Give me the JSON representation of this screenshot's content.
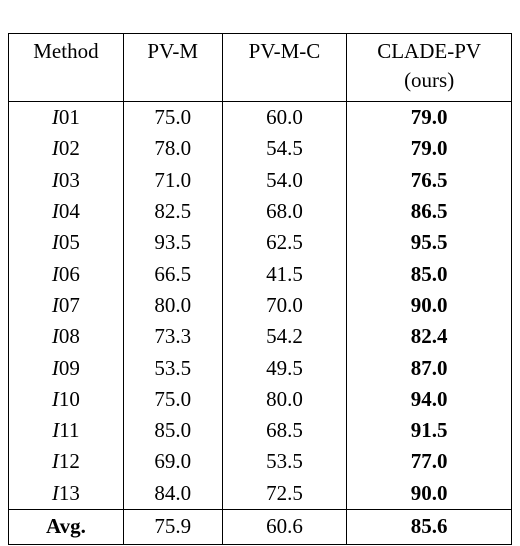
{
  "table": {
    "header": [
      "Method",
      "PV-M",
      "PV-M-C",
      "CLADE-PV",
      "(ours)"
    ],
    "rows": [
      [
        "I01",
        "75.0",
        "60.0",
        "79.0"
      ],
      [
        "I02",
        "78.0",
        "54.5",
        "79.0"
      ],
      [
        "I03",
        "71.0",
        "54.0",
        "76.5"
      ],
      [
        "I04",
        "82.5",
        "68.0",
        "86.5"
      ],
      [
        "I05",
        "93.5",
        "62.5",
        "95.5"
      ],
      [
        "I06",
        "66.5",
        "41.5",
        "85.0"
      ],
      [
        "I07",
        "80.0",
        "70.0",
        "90.0"
      ],
      [
        "I08",
        "73.3",
        "54.2",
        "82.4"
      ],
      [
        "I09",
        "53.5",
        "49.5",
        "87.0"
      ],
      [
        "I10",
        "75.0",
        "80.0",
        "94.0"
      ],
      [
        "I11",
        "85.0",
        "68.5",
        "91.5"
      ],
      [
        "I12",
        "69.0",
        "53.5",
        "77.0"
      ],
      [
        "I13",
        "84.0",
        "72.5",
        "90.0"
      ]
    ],
    "average": [
      "Avg.",
      "75.9",
      "60.6",
      "85.6"
    ]
  }
}
